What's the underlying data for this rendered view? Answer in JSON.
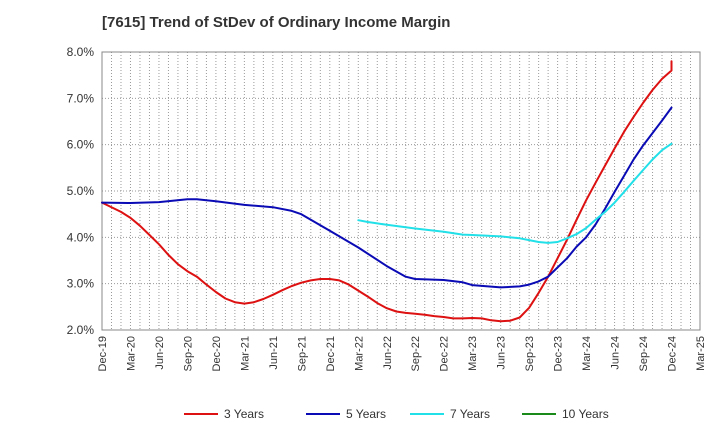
{
  "chart_data": {
    "type": "line",
    "title": "[7615]  Trend of StDev of Ordinary Income Margin",
    "xlabel": "",
    "ylabel": "",
    "ylim": [
      2.0,
      8.0
    ],
    "y_ticks": [
      "8.0%",
      "7.0%",
      "6.0%",
      "5.0%",
      "4.0%",
      "3.0%",
      "2.0%"
    ],
    "x_ticks": [
      "Dec-19",
      "Mar-20",
      "Jun-20",
      "Sep-20",
      "Dec-20",
      "Mar-21",
      "Jun-21",
      "Sep-21",
      "Dec-21",
      "Mar-22",
      "Jun-22",
      "Sep-22",
      "Dec-22",
      "Mar-23",
      "Jun-23",
      "Sep-23",
      "Dec-23",
      "Mar-24",
      "Jun-24",
      "Sep-24",
      "Dec-24",
      "Mar-25"
    ],
    "grid": true,
    "legend_position": "bottom",
    "series": [
      {
        "name": "3 Years",
        "color": "#dd1111",
        "points": [
          [
            "Dec-19",
            4.75
          ],
          [
            "Feb-20",
            4.55
          ],
          [
            "Mar-20",
            4.42
          ],
          [
            "Apr-20",
            4.25
          ],
          [
            "May-20",
            4.05
          ],
          [
            "Jun-20",
            3.85
          ],
          [
            "Jul-20",
            3.62
          ],
          [
            "Aug-20",
            3.42
          ],
          [
            "Sep-20",
            3.27
          ],
          [
            "Oct-20",
            3.15
          ],
          [
            "Nov-20",
            2.98
          ],
          [
            "Dec-20",
            2.82
          ],
          [
            "Jan-21",
            2.68
          ],
          [
            "Feb-21",
            2.6
          ],
          [
            "Mar-21",
            2.57
          ],
          [
            "Apr-21",
            2.6
          ],
          [
            "May-21",
            2.67
          ],
          [
            "Jun-21",
            2.76
          ],
          [
            "Jul-21",
            2.86
          ],
          [
            "Aug-21",
            2.95
          ],
          [
            "Sep-21",
            3.02
          ],
          [
            "Oct-21",
            3.07
          ],
          [
            "Nov-21",
            3.1
          ],
          [
            "Dec-21",
            3.1
          ],
          [
            "Jan-22",
            3.07
          ],
          [
            "Feb-22",
            2.98
          ],
          [
            "Mar-22",
            2.85
          ],
          [
            "Apr-22",
            2.72
          ],
          [
            "May-22",
            2.58
          ],
          [
            "Jun-22",
            2.47
          ],
          [
            "Jul-22",
            2.4
          ],
          [
            "Aug-22",
            2.37
          ],
          [
            "Sep-22",
            2.35
          ],
          [
            "Oct-22",
            2.33
          ],
          [
            "Nov-22",
            2.3
          ],
          [
            "Dec-22",
            2.28
          ],
          [
            "Jan-23",
            2.25
          ],
          [
            "Feb-23",
            2.25
          ],
          [
            "Mar-23",
            2.26
          ],
          [
            "Apr-23",
            2.25
          ],
          [
            "May-23",
            2.21
          ],
          [
            "Jun-23",
            2.19
          ],
          [
            "Jul-23",
            2.2
          ],
          [
            "Aug-23",
            2.27
          ],
          [
            "Sep-23",
            2.48
          ],
          [
            "Oct-23",
            2.8
          ],
          [
            "Nov-23",
            3.15
          ],
          [
            "Dec-23",
            3.55
          ],
          [
            "Jan-24",
            3.95
          ],
          [
            "Feb-24",
            4.38
          ],
          [
            "Mar-24",
            4.8
          ],
          [
            "Apr-24",
            5.18
          ],
          [
            "May-24",
            5.55
          ],
          [
            "Jun-24",
            5.92
          ],
          [
            "Jul-24",
            6.28
          ],
          [
            "Aug-24",
            6.6
          ],
          [
            "Sep-24",
            6.9
          ],
          [
            "Oct-24",
            7.18
          ],
          [
            "Nov-24",
            7.42
          ],
          [
            "Dec-24",
            7.6
          ],
          [
            "Dec-24",
            7.8
          ]
        ]
      },
      {
        "name": "5 Years",
        "color": "#0b0bb5",
        "points": [
          [
            "Dec-19",
            4.75
          ],
          [
            "Mar-20",
            4.74
          ],
          [
            "Jun-20",
            4.76
          ],
          [
            "Sep-20",
            4.82
          ],
          [
            "Oct-20",
            4.82
          ],
          [
            "Dec-20",
            4.78
          ],
          [
            "Mar-21",
            4.7
          ],
          [
            "Jun-21",
            4.65
          ],
          [
            "Aug-21",
            4.57
          ],
          [
            "Sep-21",
            4.5
          ],
          [
            "Oct-21",
            4.38
          ],
          [
            "Dec-21",
            4.14
          ],
          [
            "Mar-22",
            3.78
          ],
          [
            "Jun-22",
            3.38
          ],
          [
            "Aug-22",
            3.15
          ],
          [
            "Sep-22",
            3.1
          ],
          [
            "Dec-22",
            3.08
          ],
          [
            "Feb-23",
            3.03
          ],
          [
            "Mar-23",
            2.97
          ],
          [
            "Jun-23",
            2.92
          ],
          [
            "Aug-23",
            2.94
          ],
          [
            "Sep-23",
            2.98
          ],
          [
            "Oct-23",
            3.05
          ],
          [
            "Nov-23",
            3.15
          ],
          [
            "Dec-23",
            3.35
          ],
          [
            "Jan-24",
            3.55
          ],
          [
            "Feb-24",
            3.8
          ],
          [
            "Mar-24",
            4.0
          ],
          [
            "Apr-24",
            4.28
          ],
          [
            "May-24",
            4.62
          ],
          [
            "Jun-24",
            4.98
          ],
          [
            "Jul-24",
            5.33
          ],
          [
            "Aug-24",
            5.68
          ],
          [
            "Sep-24",
            5.98
          ],
          [
            "Oct-24",
            6.25
          ],
          [
            "Nov-24",
            6.52
          ],
          [
            "Dec-24",
            6.8
          ]
        ]
      },
      {
        "name": "7 Years",
        "color": "#22e0e8",
        "points": [
          [
            "Mar-22",
            4.37
          ],
          [
            "Apr-22",
            4.33
          ],
          [
            "May-22",
            4.3
          ],
          [
            "Jun-22",
            4.27
          ],
          [
            "Sep-22",
            4.19
          ],
          [
            "Dec-22",
            4.12
          ],
          [
            "Feb-23",
            4.06
          ],
          [
            "Mar-23",
            4.05
          ],
          [
            "Jun-23",
            4.02
          ],
          [
            "Aug-23",
            3.98
          ],
          [
            "Sep-23",
            3.94
          ],
          [
            "Oct-23",
            3.9
          ],
          [
            "Nov-23",
            3.88
          ],
          [
            "Dec-23",
            3.9
          ],
          [
            "Jan-24",
            3.98
          ],
          [
            "Feb-24",
            4.07
          ],
          [
            "Mar-24",
            4.2
          ],
          [
            "Apr-24",
            4.38
          ],
          [
            "May-24",
            4.55
          ],
          [
            "Jun-24",
            4.75
          ],
          [
            "Jul-24",
            4.98
          ],
          [
            "Aug-24",
            5.22
          ],
          [
            "Sep-24",
            5.45
          ],
          [
            "Oct-24",
            5.68
          ],
          [
            "Nov-24",
            5.88
          ],
          [
            "Dec-24",
            6.02
          ]
        ]
      },
      {
        "name": "10 Years",
        "color": "#1a8a1a",
        "points": []
      }
    ]
  }
}
